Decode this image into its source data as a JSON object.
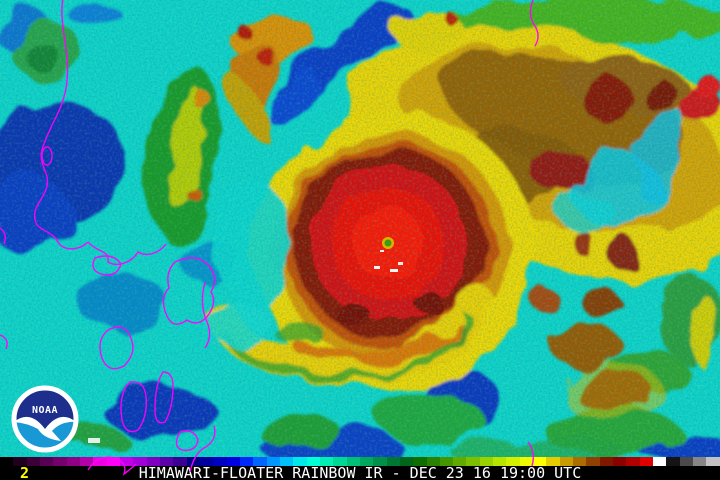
{
  "caption": {
    "frame_number": "2",
    "title": "HIMAWARI-FLOATER RAINBOW IR - DEC 23 16 19:00 UTC"
  },
  "logo": {
    "text": "NOAA"
  },
  "palette": {
    "background_cyan": "#10d4c8",
    "coastline_magenta": "#ff00ff",
    "caption_background": "#000000",
    "caption_text": "#ffffff",
    "frame_number_yellow": "#ffff00",
    "storm_core_red": "#ff1505",
    "storm_ring_maroon": "#8a1404",
    "logo_dark_blue": "#1d2e8c",
    "logo_light_blue": "#1899d6"
  },
  "colorbar": {
    "segments": [
      "#000000",
      "#20001e",
      "#3c0038",
      "#580052",
      "#74006c",
      "#900086",
      "#b400a8",
      "#ee00e2",
      "#ff00f6",
      "#c100e8",
      "#a100d8",
      "#8000c0",
      "#5c00a8",
      "#3a0092",
      "#000082",
      "#0000a0",
      "#0000c0",
      "#0000e0",
      "#0028f8",
      "#0064ff",
      "#0096ff",
      "#00c0f8",
      "#00e8e8",
      "#00ffd2",
      "#00f0b4",
      "#00d896",
      "#00c078",
      "#00a85e",
      "#009048",
      "#007832",
      "#00661c",
      "#0e6e00",
      "#2a8200",
      "#469600",
      "#62aa00",
      "#7ebe00",
      "#9ad200",
      "#b6e600",
      "#d2f000",
      "#eefa00",
      "#ffff00",
      "#e4cc00",
      "#c89c00",
      "#ac6c00",
      "#904000",
      "#801800",
      "#8c0000",
      "#b00000",
      "#e00000",
      "#ffffff",
      "#141414",
      "#4a4a4a",
      "#868686",
      "#c2c2c2"
    ]
  }
}
